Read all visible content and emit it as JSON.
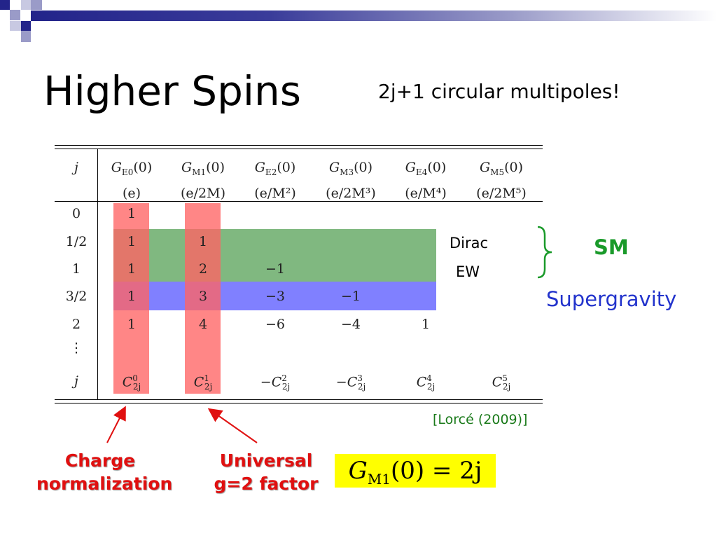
{
  "slide": {
    "title": "Higher Spins",
    "subtitle": "2j+1 circular multipoles!"
  },
  "table": {
    "header_col0": "j",
    "headers": [
      {
        "main": "G",
        "sub": "E0",
        "arg": "(0)",
        "unit": "(e)"
      },
      {
        "main": "G",
        "sub": "M1",
        "arg": "(0)",
        "unit": "(e/2M)"
      },
      {
        "main": "G",
        "sub": "E2",
        "arg": "(0)",
        "unit": "(e/M²)"
      },
      {
        "main": "G",
        "sub": "M3",
        "arg": "(0)",
        "unit": "(e/2M³)"
      },
      {
        "main": "G",
        "sub": "E4",
        "arg": "(0)",
        "unit": "(e/M⁴)"
      },
      {
        "main": "G",
        "sub": "M5",
        "arg": "(0)",
        "unit": "(e/2M⁵)"
      }
    ],
    "rows": [
      {
        "j": "0",
        "cells": [
          "1",
          "",
          "",
          "",
          "",
          ""
        ]
      },
      {
        "j": "1/2",
        "cells": [
          "1",
          "1",
          "",
          "",
          "",
          ""
        ]
      },
      {
        "j": "1",
        "cells": [
          "1",
          "2",
          "−1",
          "",
          "",
          ""
        ]
      },
      {
        "j": "3/2",
        "cells": [
          "1",
          "3",
          "−3",
          "−1",
          "",
          ""
        ]
      },
      {
        "j": "2",
        "cells": [
          "1",
          "4",
          "−6",
          "−4",
          "1",
          ""
        ]
      },
      {
        "j": "⋮",
        "cells": [
          "",
          "",
          "",
          "",
          "",
          ""
        ]
      }
    ],
    "last_row": {
      "j": "j",
      "cells": [
        {
          "sign": "",
          "sup": "0"
        },
        {
          "sign": "",
          "sup": "1"
        },
        {
          "sign": "−",
          "sup": "2"
        },
        {
          "sign": "−",
          "sup": "3"
        },
        {
          "sign": "",
          "sup": "4"
        },
        {
          "sign": "",
          "sup": "5"
        }
      ],
      "symbol": "C",
      "sub": "2j"
    },
    "highlight_colors": {
      "red": "#ff8080",
      "green": "#80b880",
      "blue": "#8080ff"
    }
  },
  "labels": {
    "dirac": "Dirac",
    "ew": "EW",
    "sm": "SM",
    "supergravity": "Supergravity",
    "reference": "[Lorcé (2009)]",
    "charge_note_line1": "Charge",
    "charge_note_line2": "normalization",
    "g2_note_line1": "Universal",
    "g2_note_line2": "g=2 factor"
  },
  "formula": {
    "main": "G",
    "sub": "M1",
    "rest": "(0) = 2j"
  }
}
